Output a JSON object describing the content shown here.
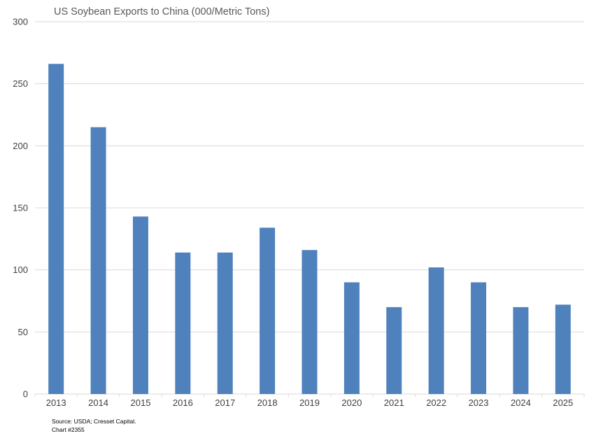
{
  "chart_data": {
    "type": "bar",
    "title": "US Soybean Exports to China (000/Metric Tons)",
    "xlabel": "",
    "ylabel": "",
    "categories": [
      "2013",
      "2014",
      "2015",
      "2016",
      "2017",
      "2018",
      "2019",
      "2020",
      "2021",
      "2022",
      "2023",
      "2024",
      "2025"
    ],
    "values": [
      266,
      215,
      143,
      114,
      114,
      134,
      116,
      90,
      70,
      102,
      90,
      70,
      72
    ],
    "ylim": [
      0,
      300
    ],
    "yticks": [
      0,
      50,
      100,
      150,
      200,
      250,
      300
    ],
    "grid": true,
    "legend": "none",
    "bar_color": "#4f81bd",
    "grid_color": "#d9d9d9"
  },
  "footer": {
    "source": "Source: USDA; Cresset Capital.",
    "chart_number": "Chart #2355"
  }
}
